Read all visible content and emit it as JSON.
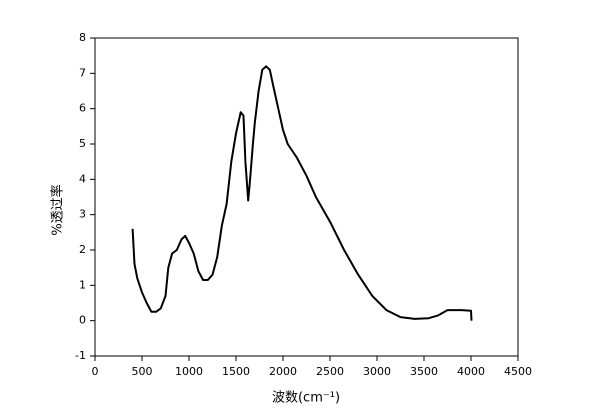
{
  "chart_data": {
    "type": "line",
    "xlabel": "波数(cm⁻¹)",
    "ylabel": "%透过率",
    "x": [
      400,
      420,
      450,
      500,
      550,
      600,
      650,
      700,
      750,
      780,
      820,
      870,
      920,
      960,
      1000,
      1050,
      1100,
      1150,
      1200,
      1250,
      1300,
      1350,
      1400,
      1450,
      1500,
      1550,
      1580,
      1600,
      1630,
      1650,
      1680,
      1700,
      1740,
      1780,
      1820,
      1860,
      1900,
      1950,
      2000,
      2050,
      2150,
      2250,
      2350,
      2500,
      2650,
      2800,
      2950,
      3100,
      3250,
      3400,
      3550,
      3650,
      3750,
      3900,
      4000,
      4005
    ],
    "series": [
      {
        "name": "%透过率",
        "color": "#000000",
        "values": [
          2.6,
          1.6,
          1.2,
          0.8,
          0.5,
          0.25,
          0.25,
          0.35,
          0.7,
          1.5,
          1.9,
          2.0,
          2.3,
          2.4,
          2.2,
          1.9,
          1.4,
          1.15,
          1.15,
          1.3,
          1.8,
          2.7,
          3.3,
          4.5,
          5.3,
          5.9,
          5.8,
          4.5,
          3.4,
          4.0,
          5.0,
          5.6,
          6.5,
          7.1,
          7.2,
          7.1,
          6.6,
          6.0,
          5.4,
          5.0,
          4.6,
          4.1,
          3.5,
          2.8,
          2.0,
          1.3,
          0.7,
          0.3,
          0.1,
          0.05,
          0.07,
          0.15,
          0.3,
          0.3,
          0.28,
          0.0
        ]
      }
    ],
    "xlim": [
      0,
      4500
    ],
    "xticks": [
      0,
      500,
      1000,
      1500,
      2000,
      2500,
      3000,
      3500,
      4000,
      4500
    ],
    "ylim": [
      -1,
      8
    ],
    "yticks": [
      -1,
      0,
      1,
      2,
      3,
      4,
      5,
      6,
      7,
      8
    ]
  }
}
